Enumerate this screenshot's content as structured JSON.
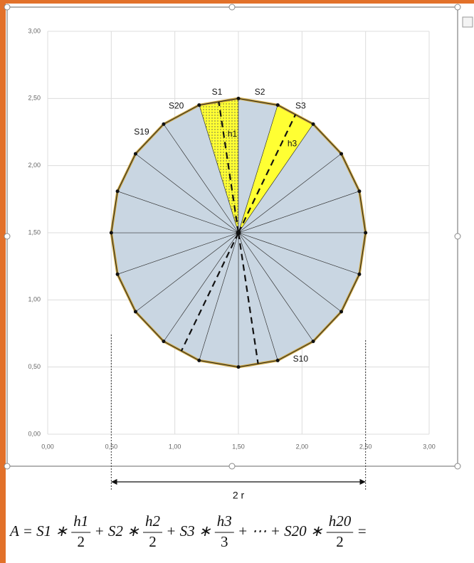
{
  "chart_data": {
    "type": "polygon",
    "x": [
      1.191,
      1.5,
      1.809,
      2.088,
      2.309,
      2.451,
      2.5,
      2.451,
      2.309,
      2.088,
      1.809,
      1.5,
      1.191,
      0.912,
      0.691,
      0.549,
      0.5,
      0.549,
      0.691,
      0.912
    ],
    "y": [
      2.451,
      2.5,
      2.451,
      2.309,
      2.088,
      1.809,
      1.5,
      1.191,
      0.912,
      0.691,
      0.549,
      0.5,
      0.549,
      0.691,
      0.912,
      1.191,
      1.5,
      1.809,
      2.088,
      2.309
    ],
    "center": [
      1.5,
      1.5
    ],
    "highlight": [
      1,
      3
    ],
    "apothems": [
      1,
      3,
      11,
      13
    ],
    "labels": [
      {
        "text": "S1",
        "sector": 1
      },
      {
        "text": "S2",
        "sector": 2
      },
      {
        "text": "S3",
        "sector": 3
      },
      {
        "text": "S10",
        "sector": 10
      },
      {
        "text": "S19",
        "sector": 19
      },
      {
        "text": "S20",
        "sector": 20
      }
    ],
    "apothem_labels": [
      {
        "text": "h1",
        "sector": 1
      },
      {
        "text": "h3",
        "sector": 3
      }
    ],
    "xlim": [
      0,
      3
    ],
    "ylim": [
      0,
      3
    ],
    "xticks": [
      {
        "value": 0,
        "label": "0,00"
      },
      {
        "value": 0.5,
        "label": "0,50"
      },
      {
        "value": 1,
        "label": "1,00"
      },
      {
        "value": 1.5,
        "label": "1,50"
      },
      {
        "value": 2,
        "label": "2,00"
      },
      {
        "value": 2.5,
        "label": "2,50"
      },
      {
        "value": 3,
        "label": "3,00"
      }
    ],
    "yticks": [
      {
        "value": 0,
        "label": "0,00"
      },
      {
        "value": 0.5,
        "label": "0,50"
      },
      {
        "value": 1,
        "label": "1,00"
      },
      {
        "value": 1.5,
        "label": "1,50"
      },
      {
        "value": 2,
        "label": "2,00"
      },
      {
        "value": 2.5,
        "label": "2,50"
      },
      {
        "value": 3,
        "label": "3,00"
      }
    ],
    "grid": true,
    "dimension": {
      "label": "2 r",
      "from": 0.5,
      "to": 2.5
    }
  },
  "formula": [
    {
      "text": "A = S1 ∗ "
    },
    {
      "num": "h1",
      "den": "2"
    },
    {
      "text": " + S2 ∗ "
    },
    {
      "num": "h2",
      "den": "2"
    },
    {
      "text": " + S3 ∗ "
    },
    {
      "num": "h3",
      "den": "3"
    },
    {
      "text": " + ⋯ + S20 ∗ "
    },
    {
      "num": "h20",
      "den": "2"
    },
    {
      "text": " ="
    }
  ]
}
